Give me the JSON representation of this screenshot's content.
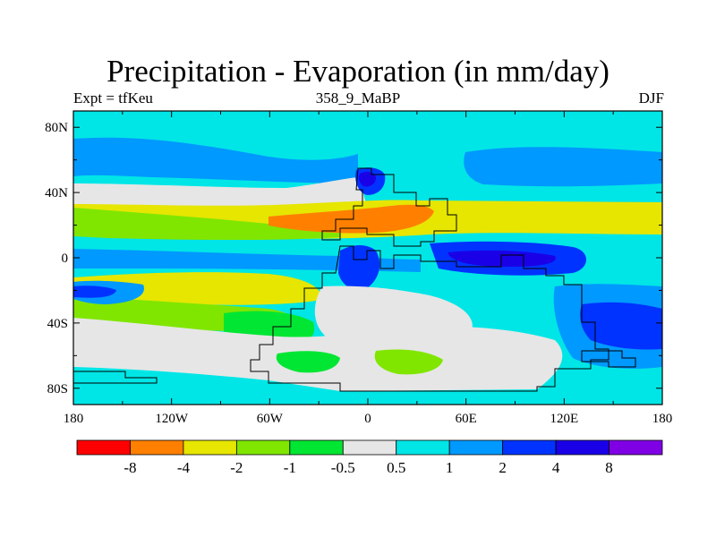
{
  "title": "Precipitation - Evaporation (in mm/day)",
  "experiment": "Expt = tfKeu",
  "period": "358_9_MaBP",
  "season": "DJF",
  "map": {
    "lon_ticks": [
      "180",
      "120W",
      "60W",
      "0",
      "60E",
      "120E",
      "180"
    ],
    "lat_ticks": [
      "80N",
      "40N",
      "0",
      "40S",
      "80S"
    ],
    "lon_range": [
      -180,
      180
    ],
    "lat_range": [
      -90,
      90
    ]
  },
  "colorbar": {
    "colors": [
      "#ff0000",
      "#ff8000",
      "#e6e600",
      "#80e600",
      "#00e633",
      "#e6e6e6",
      "#00e6e6",
      "#0099ff",
      "#0033ff",
      "#1a00e6",
      "#8000e6"
    ],
    "labels": [
      "-8",
      "-4",
      "-2",
      "-1",
      "-0.5",
      "0.5",
      "1",
      "2",
      "4",
      "8"
    ]
  },
  "colors": {
    "ocean_wet": "#00e6e6",
    "wet_blue": "#0099ff",
    "very_wet": "#0033ff",
    "dry_orange": "#ff8000",
    "dry_yellow": "#e6e600",
    "dry_lime": "#80e600",
    "dry_green": "#00e633",
    "neutral": "#e6e6e6"
  }
}
